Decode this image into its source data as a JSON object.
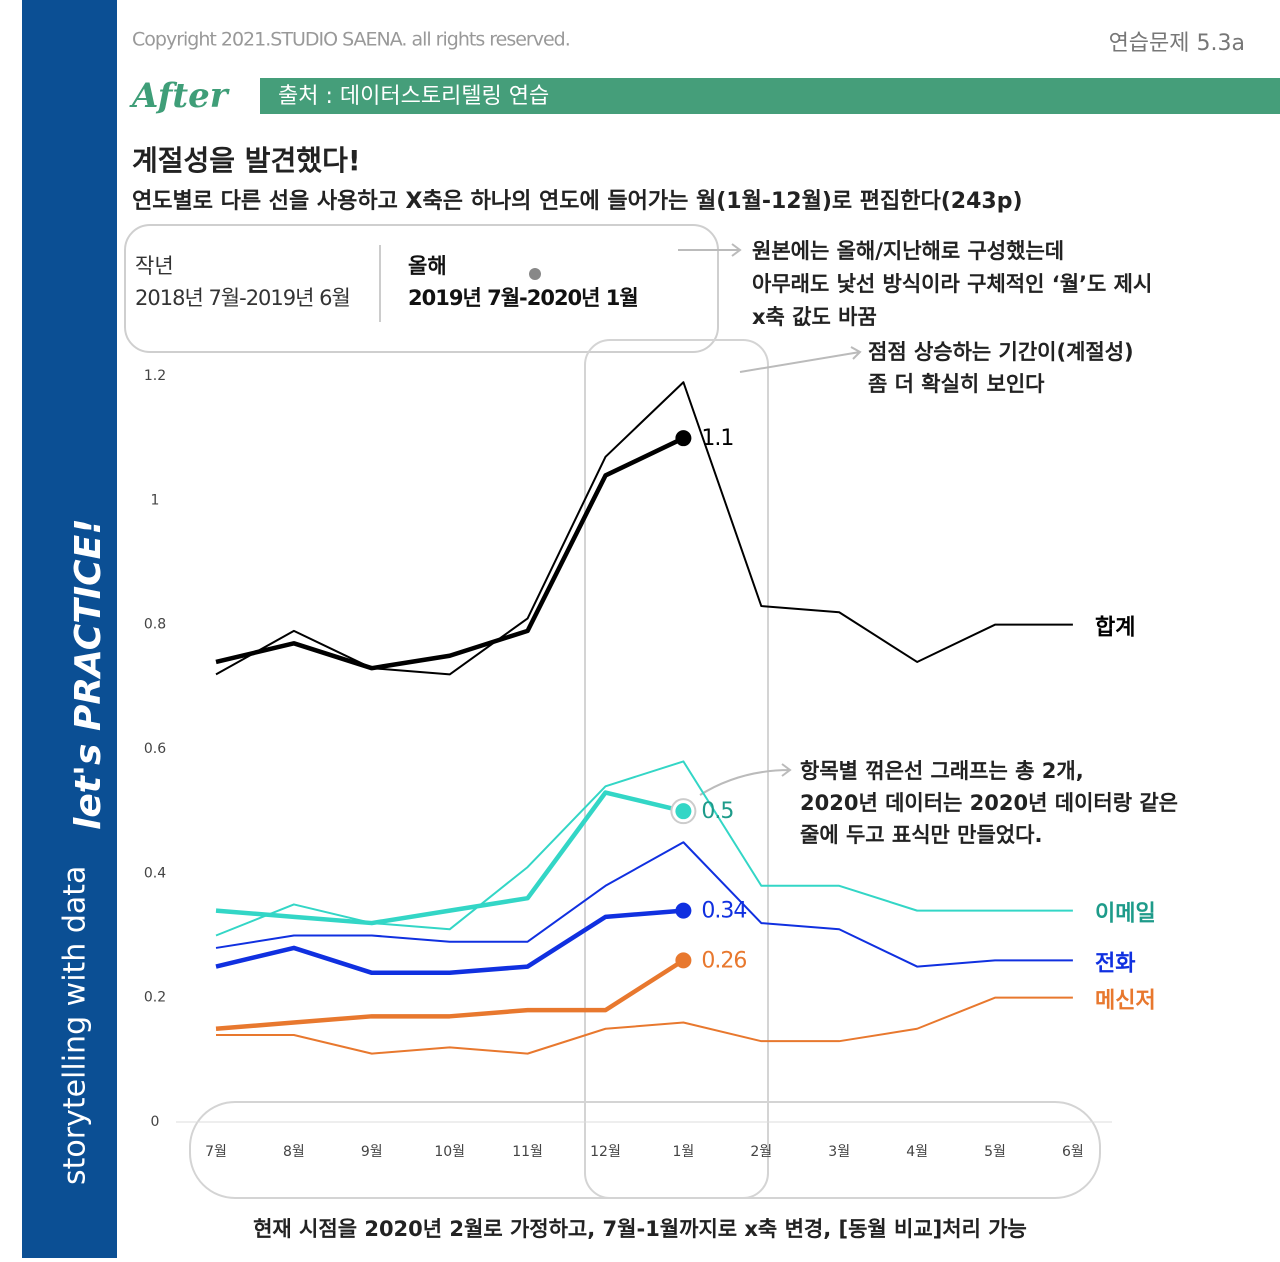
{
  "header": {
    "copyright": "Copyright 2021.STUDIO SAENA. all rights reserved.",
    "exercise": "연습문제 5.3a",
    "after": "After",
    "source": "출처 : 데이터스토리텔링 연습"
  },
  "sidebar": {
    "brand": "storytelling with data",
    "practice": "let's PRACTICE!"
  },
  "legend": {
    "last_year": {
      "label": "작년",
      "period": "2018년 7월-2019년 6월"
    },
    "this_year": {
      "label": "올해",
      "period": "2019년 7월-2020년 1월"
    }
  },
  "annotations": [
    {
      "lines": [
        "원본에는 올해/지난해로 구성했는데",
        "아무래도 낯선 방식이라 구체적인 ‘월’도 제시",
        "x축 값도 바꿈"
      ]
    },
    {
      "lines": [
        "점점 상승하는 기간이(계절성)",
        "좀 더 확실히 보인다"
      ]
    },
    {
      "lines": [
        "항목별 꺾은선 그래프는 총 2개,",
        "2020년 데이터는 2020년 데이터랑 같은",
        "줄에 두고 표식만 만들었다."
      ]
    }
  ],
  "footer_note": "현재 시점을 2020년 2월로 가정하고, 7월-1월까지로 x축 변경, [동월 비교]처리 가능",
  "chart_data": {
    "type": "line",
    "title": "계절성을 발견했다!",
    "subtitle": "연도별로 다른 선을 사용하고 X축은 하나의 연도에 들어가는 월(1월-12월)로 편집한다(243p)",
    "categories": [
      "7월",
      "8월",
      "9월",
      "10월",
      "11월",
      "12월",
      "1월",
      "2월",
      "3월",
      "4월",
      "5월",
      "6월"
    ],
    "ylim": [
      0,
      1.2
    ],
    "yticks": [
      0,
      0.2,
      0.4,
      0.6,
      0.8,
      1,
      1.2
    ],
    "series": [
      {
        "name": "합계",
        "color": "#000000",
        "label_color": "#000000",
        "last_year": [
          0.72,
          0.79,
          0.73,
          0.72,
          0.81,
          1.07,
          1.19,
          0.83,
          0.82,
          0.74,
          0.8,
          0.8
        ],
        "this_year": [
          0.74,
          0.77,
          0.73,
          0.75,
          0.79,
          1.04,
          1.1,
          null,
          null,
          null,
          null,
          null
        ]
      },
      {
        "name": "이메일",
        "color": "#33d6c6",
        "label_color": "#1e9b8a",
        "last_year": [
          0.3,
          0.35,
          0.32,
          0.31,
          0.41,
          0.54,
          0.58,
          0.38,
          0.38,
          0.34,
          0.34,
          0.34
        ],
        "this_year": [
          0.34,
          0.33,
          0.32,
          0.34,
          0.36,
          0.53,
          0.5,
          null,
          null,
          null,
          null,
          null
        ]
      },
      {
        "name": "전화",
        "color": "#1030e0",
        "label_color": "#1030e0",
        "last_year": [
          0.28,
          0.3,
          0.3,
          0.29,
          0.29,
          0.38,
          0.45,
          0.32,
          0.31,
          0.25,
          0.26,
          0.26
        ],
        "this_year": [
          0.25,
          0.28,
          0.24,
          0.24,
          0.25,
          0.33,
          0.34,
          null,
          null,
          null,
          null,
          null
        ]
      },
      {
        "name": "메신저",
        "color": "#e8782e",
        "label_color": "#e8782e",
        "last_year": [
          0.14,
          0.14,
          0.11,
          0.12,
          0.11,
          0.15,
          0.16,
          0.13,
          0.13,
          0.15,
          0.2,
          0.2
        ],
        "this_year": [
          0.15,
          0.16,
          0.17,
          0.17,
          0.18,
          0.18,
          0.26,
          null,
          null,
          null,
          null,
          null
        ]
      }
    ]
  }
}
